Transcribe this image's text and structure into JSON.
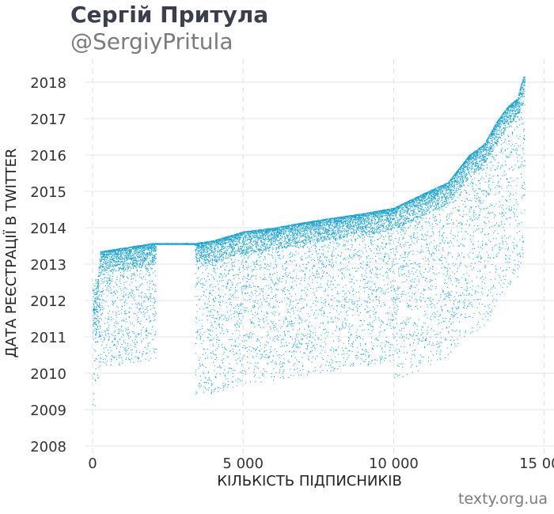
{
  "header": {
    "title": "Сергій Притула",
    "subtitle": "@SergiyPritula"
  },
  "footer": {
    "source": "texty.org.ua"
  },
  "chart_data": {
    "type": "scatter",
    "title": "Сергій Притула",
    "subtitle": "@SergiyPritula",
    "xlabel": "КІЛЬКІСТЬ ПІДПИСНИКІВ",
    "ylabel": "ДАТА РЕЄСТРАЦІЇ В TWITTER",
    "xlim": [
      -400,
      15000
    ],
    "ylim": [
      2007.85,
      2018.35
    ],
    "x_ticks": [
      0,
      5000,
      10000,
      15000
    ],
    "x_tick_labels": [
      "0",
      "5 000",
      "10 000",
      "15 000"
    ],
    "y_ticks": [
      2008,
      2009,
      2010,
      2011,
      2012,
      2013,
      2014,
      2015,
      2016,
      2017,
      2018
    ],
    "y_tick_labels": [
      "2008",
      "2009",
      "2010",
      "2011",
      "2012",
      "2013",
      "2014",
      "2015",
      "2016",
      "2017",
      "2018"
    ],
    "grid": true,
    "point_color": "#1ba3d3",
    "frontier": {
      "description": "upper envelope of registration date vs follower index",
      "x": [
        0,
        150,
        250,
        1000,
        2000,
        3000,
        3400,
        4000,
        5000,
        6000,
        7000,
        8000,
        9000,
        10000,
        11000,
        11800,
        12500,
        13000,
        13400,
        13800,
        14100,
        14300
      ],
      "y": [
        2011.8,
        2012.5,
        2013.35,
        2013.45,
        2013.58,
        2013.58,
        2013.58,
        2013.65,
        2013.9,
        2014.0,
        2014.15,
        2014.28,
        2014.4,
        2014.55,
        2014.95,
        2015.25,
        2016.0,
        2016.3,
        2016.9,
        2017.35,
        2017.55,
        2018.15
      ]
    },
    "gap_x_range": [
      2100,
      3400
    ],
    "approx_point_count": 14400
  }
}
